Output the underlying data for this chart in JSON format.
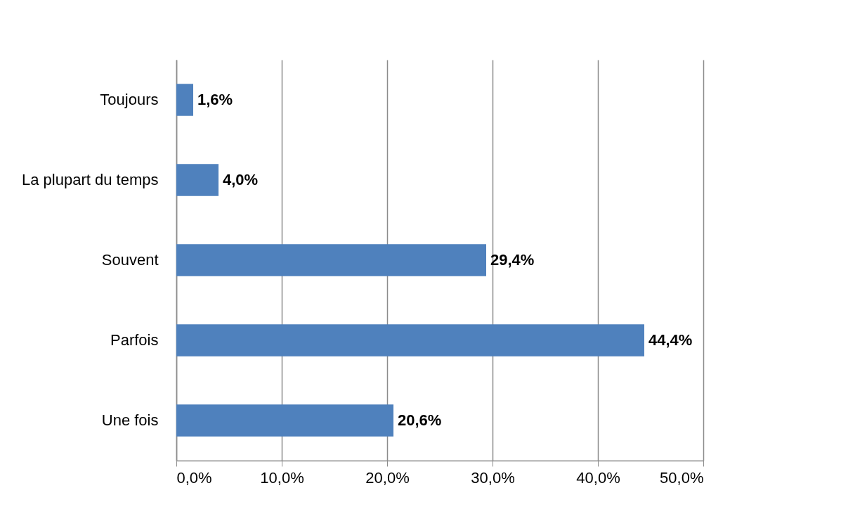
{
  "chart_data": {
    "type": "bar",
    "orientation": "horizontal",
    "categories": [
      "Toujours",
      "La plupart du temps",
      "Souvent",
      "Parfois",
      "Une fois"
    ],
    "values": [
      1.6,
      4.0,
      29.4,
      44.4,
      20.6
    ],
    "value_labels": [
      "1,6%",
      "4,0%",
      "29,4%",
      "44,4%",
      "20,6%"
    ],
    "color": "#4f81bd",
    "xlim": [
      0,
      50
    ],
    "xticks": [
      {
        "value": 0,
        "label": "0,0%"
      },
      {
        "value": 10,
        "label": "10,0%"
      },
      {
        "value": 20,
        "label": "20,0%"
      },
      {
        "value": 30,
        "label": "30,0%"
      },
      {
        "value": 40,
        "label": "40,0%"
      },
      {
        "value": 50,
        "label": "50,0%"
      }
    ],
    "grid": "x"
  }
}
